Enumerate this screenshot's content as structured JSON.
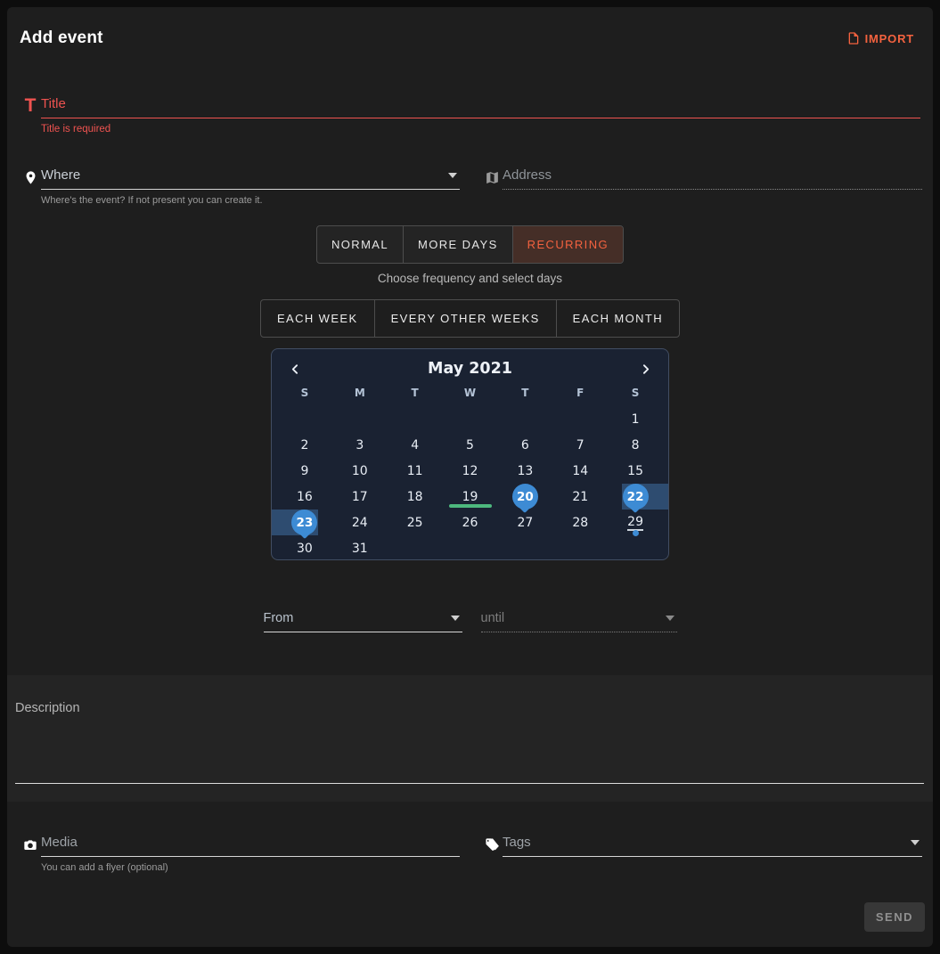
{
  "header": {
    "title": "Add event",
    "import_label": "IMPORT",
    "import_icon": "file-import-icon"
  },
  "title_field": {
    "icon": "text-title-icon",
    "placeholder": "Title",
    "value": "",
    "error": "Title is required"
  },
  "where_field": {
    "icon": "location-pin-icon",
    "placeholder": "Where",
    "value": "",
    "helper": "Where's the event? If not present you can create it."
  },
  "address_field": {
    "icon": "map-icon",
    "placeholder": "Address",
    "value": ""
  },
  "type_tabs": [
    {
      "label": "NORMAL",
      "selected": false
    },
    {
      "label": "MORE DAYS",
      "selected": false
    },
    {
      "label": "RECURRING",
      "selected": true
    }
  ],
  "frequency": {
    "hint": "Choose frequency and select days",
    "options": [
      {
        "label": "EACH WEEK",
        "selected": false
      },
      {
        "label": "EVERY OTHER WEEKS",
        "selected": false
      },
      {
        "label": "EACH MONTH",
        "selected": false
      }
    ]
  },
  "calendar": {
    "title": "May 2021",
    "prev_icon": "chevron-left-icon",
    "next_icon": "chevron-right-icon",
    "weekdays": [
      "S",
      "M",
      "T",
      "W",
      "T",
      "F",
      "S"
    ],
    "weeks": [
      [
        "",
        "",
        "",
        "",
        "",
        "",
        "1"
      ],
      [
        "2",
        "3",
        "4",
        "5",
        "6",
        "7",
        "8"
      ],
      [
        "9",
        "10",
        "11",
        "12",
        "13",
        "14",
        "15"
      ],
      [
        "16",
        "17",
        "18",
        "19",
        "20",
        "21",
        "22"
      ],
      [
        "23",
        "24",
        "25",
        "26",
        "27",
        "28",
        "29"
      ],
      [
        "30",
        "31",
        "",
        "",
        "",
        "",
        ""
      ]
    ],
    "day_states": {
      "19": {
        "underline": "green"
      },
      "20": {
        "bubble": true
      },
      "22": {
        "bubble": true,
        "range": "right"
      },
      "23": {
        "bubble": true,
        "range": "left",
        "dot": true
      },
      "29": {
        "underline": "light",
        "dot": true
      }
    }
  },
  "time_fields": {
    "from_label": "From",
    "until_label": "until"
  },
  "description_field": {
    "label": "Description",
    "value": ""
  },
  "media_field": {
    "icon": "camera-icon",
    "placeholder": "Media",
    "value": "",
    "helper": "You can add a flyer (optional)"
  },
  "tags_field": {
    "icon": "tags-icon",
    "placeholder": "Tags",
    "value": ""
  },
  "send_button": {
    "label": "SEND"
  },
  "colors": {
    "error_red": "#ef5350",
    "accent_orange": "#f4623f",
    "cal_blue": "#3d8bd4",
    "range_blue": "#2e4c70",
    "green": "#4db87e",
    "panel_bg": "#1a2232",
    "card_bg": "#1e1e1e"
  }
}
